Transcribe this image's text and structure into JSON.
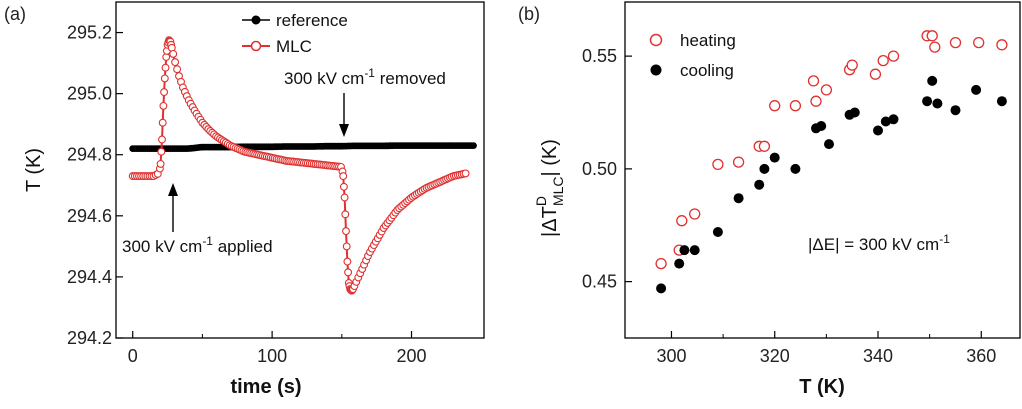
{
  "chart_data": [
    {
      "panel": "(a)",
      "type": "line",
      "xlabel": "time (s)",
      "ylabel": "T (K)",
      "xlim": [
        -12,
        252
      ],
      "ylim": [
        294.2,
        295.3
      ],
      "xticks": [
        "0",
        "100",
        "200"
      ],
      "yticks": [
        "294.2",
        "294.4",
        "294.6",
        "294.8",
        "295.0",
        "295.2"
      ],
      "legend_position": "top-right",
      "annotations": {
        "applied": {
          "pre": "300 kV cm",
          "sup": "-1",
          "post": " applied",
          "x": 21,
          "y_tip": 294.73
        },
        "removed": {
          "pre": "300 kV cm",
          "sup": "-1",
          "post": " removed",
          "x": 154,
          "y_tip": 294.77
        }
      },
      "series": [
        {
          "name": "reference",
          "color": "#000000",
          "marker": "filled-circle",
          "x": [
            0,
            10,
            20,
            30,
            40,
            50,
            60,
            70,
            80,
            90,
            100,
            110,
            120,
            130,
            140,
            150,
            160,
            170,
            180,
            190,
            200,
            210,
            220,
            230,
            240,
            245
          ],
          "values": [
            294.82,
            294.82,
            294.82,
            294.82,
            294.82,
            294.825,
            294.825,
            294.825,
            294.826,
            294.826,
            294.826,
            294.827,
            294.827,
            294.827,
            294.828,
            294.828,
            294.829,
            294.829,
            294.829,
            294.83,
            294.83,
            294.83,
            294.83,
            294.83,
            294.83,
            294.83
          ]
        },
        {
          "name": "MLC",
          "color": "#e03030",
          "marker": "open-circle",
          "x": [
            0,
            5,
            10,
            15,
            19,
            20,
            21,
            22,
            23,
            24,
            25,
            26,
            27,
            28,
            30,
            33,
            36,
            40,
            45,
            50,
            55,
            60,
            65,
            70,
            80,
            90,
            100,
            110,
            120,
            130,
            140,
            150,
            151,
            152,
            153,
            154,
            155,
            156,
            157,
            158,
            160,
            163,
            166,
            170,
            175,
            180,
            185,
            190,
            200,
            210,
            220,
            230,
            240
          ],
          "values": [
            294.73,
            294.73,
            294.73,
            294.73,
            294.74,
            294.77,
            294.85,
            294.96,
            295.05,
            295.12,
            295.16,
            295.175,
            295.17,
            295.15,
            295.11,
            295.06,
            295.02,
            294.98,
            294.94,
            294.905,
            294.88,
            294.86,
            294.845,
            294.83,
            294.81,
            294.8,
            294.79,
            294.78,
            294.775,
            294.77,
            294.765,
            294.76,
            294.73,
            294.66,
            294.55,
            294.45,
            294.38,
            294.36,
            294.355,
            294.36,
            294.38,
            294.41,
            294.44,
            294.48,
            294.52,
            294.56,
            294.59,
            294.62,
            294.66,
            294.69,
            294.71,
            294.73,
            294.74
          ]
        }
      ]
    },
    {
      "panel": "(b)",
      "type": "scatter",
      "xlabel": "T (K)",
      "ylabel": {
        "pre": "|ΔT",
        "sup": "D",
        "sub": "MLC",
        "post": "| (K)"
      },
      "xlim": [
        291,
        367.5
      ],
      "ylim": [
        0.425,
        0.574
      ],
      "xticks": [
        "300",
        "320",
        "340",
        "360"
      ],
      "yticks": [
        "0.45",
        "0.50",
        "0.55"
      ],
      "legend_position": "top-left",
      "annotation": {
        "text": "|ΔE| = 300 kV cm",
        "sup": "-1"
      },
      "series": [
        {
          "name": "heating",
          "color": "#e03030",
          "marker": "open-circle",
          "x": [
            298,
            301.5,
            302,
            304.5,
            309,
            313,
            317,
            318,
            320,
            324,
            327.5,
            328,
            330,
            334.5,
            335,
            339.5,
            341,
            343,
            349.5,
            350.5,
            351,
            355,
            359.5,
            364
          ],
          "values": [
            0.458,
            0.464,
            0.477,
            0.48,
            0.502,
            0.503,
            0.51,
            0.51,
            0.528,
            0.528,
            0.539,
            0.53,
            0.535,
            0.544,
            0.546,
            0.542,
            0.548,
            0.55,
            0.559,
            0.559,
            0.554,
            0.556,
            0.556,
            0.555
          ]
        },
        {
          "name": "cooling",
          "color": "#000000",
          "marker": "filled-circle",
          "x": [
            298,
            301.5,
            302.5,
            304.5,
            309,
            313,
            317,
            318,
            320,
            324,
            328,
            329,
            330.5,
            334.5,
            335.5,
            340,
            341.5,
            343,
            349.5,
            350.5,
            351.5,
            355,
            359,
            364
          ],
          "values": [
            0.447,
            0.458,
            0.464,
            0.464,
            0.472,
            0.487,
            0.493,
            0.5,
            0.505,
            0.5,
            0.518,
            0.519,
            0.511,
            0.524,
            0.525,
            0.517,
            0.521,
            0.522,
            0.53,
            0.539,
            0.529,
            0.526,
            0.535,
            0.53
          ]
        }
      ]
    }
  ]
}
